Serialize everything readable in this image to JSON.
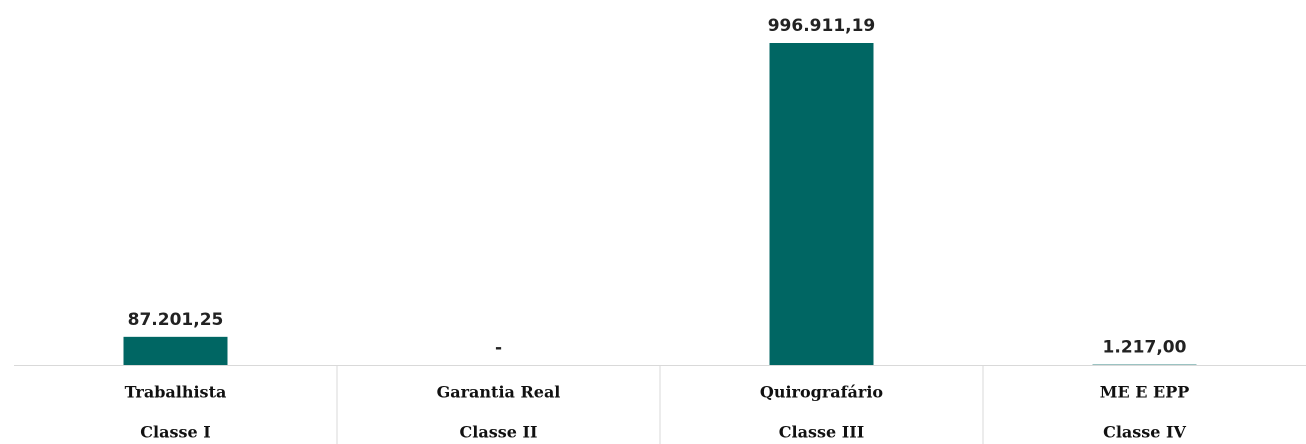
{
  "chart_data": {
    "type": "bar",
    "categories": [
      "Trabalhista",
      "Garantia Real",
      "Quirografário",
      "ME E EPP"
    ],
    "subcategories": [
      "Classe I",
      "Classe II",
      "Classe III",
      "Classe IV"
    ],
    "values": [
      87201.25,
      0,
      996911.19,
      1217
    ],
    "value_labels": [
      "87.201,25",
      "-",
      "996.911,19",
      "1.217,00"
    ],
    "color": "#006663"
  }
}
